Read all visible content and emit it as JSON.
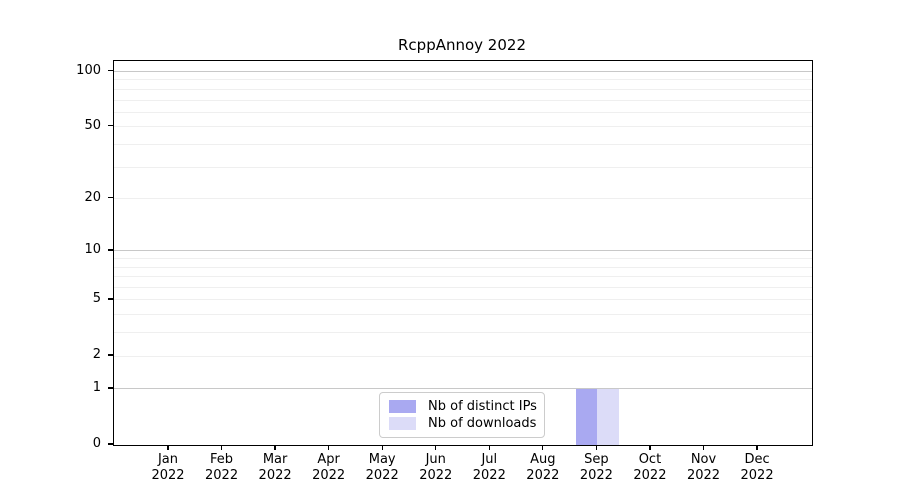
{
  "chart_data": {
    "type": "bar",
    "title": "RcppAnnoy 2022",
    "categories": [
      "Jan 2022",
      "Feb 2022",
      "Mar 2022",
      "Apr 2022",
      "May 2022",
      "Jun 2022",
      "Jul 2022",
      "Aug 2022",
      "Sep 2022",
      "Oct 2022",
      "Nov 2022",
      "Dec 2022"
    ],
    "series": [
      {
        "name": "Nb of distinct IPs",
        "color": "#a9a9f1",
        "values": [
          0,
          0,
          0,
          0,
          0,
          0,
          0,
          0,
          1,
          0,
          0,
          0
        ]
      },
      {
        "name": "Nb of downloads",
        "color": "#dcdcf8",
        "values": [
          0,
          0,
          0,
          0,
          0,
          0,
          0,
          0,
          1,
          0,
          0,
          0
        ]
      }
    ],
    "xlabel": "",
    "ylabel": "",
    "yscale": "log1p",
    "ylim": [
      0,
      114
    ],
    "yticks": [
      0,
      1,
      2,
      5,
      10,
      20,
      50,
      100
    ],
    "grid": {
      "on": true,
      "major_lines": [
        1,
        10,
        100
      ],
      "minor_lines": [
        2,
        3,
        4,
        5,
        6,
        7,
        8,
        9,
        20,
        30,
        40,
        50,
        60,
        70,
        80,
        90
      ],
      "major_color": "#c8c8c8",
      "minor_color": "#efefef"
    },
    "legend": {
      "position": "lower center"
    },
    "axis_color": "#000000",
    "text_color": "#000000",
    "background_color": "#ffffff"
  }
}
